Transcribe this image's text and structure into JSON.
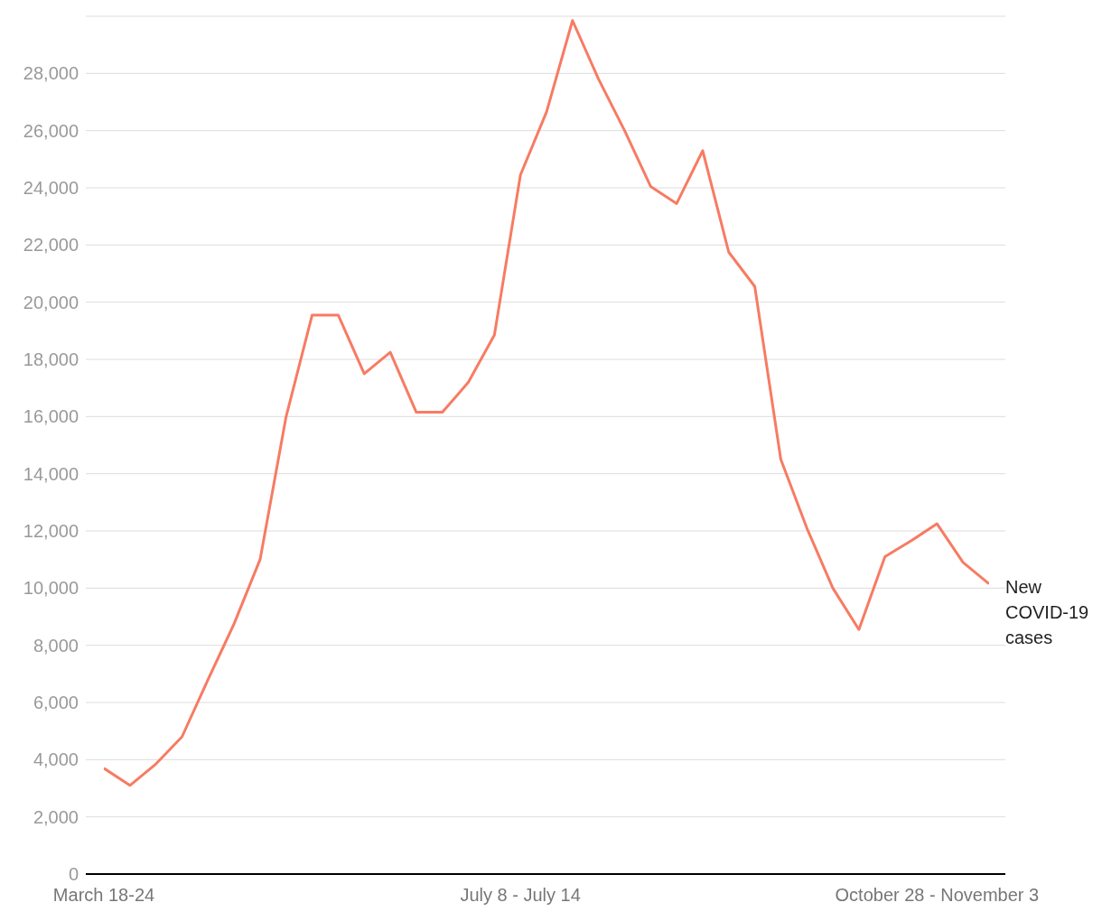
{
  "chart_data": {
    "type": "line",
    "categories": [
      "March 18-24",
      null,
      null,
      null,
      null,
      null,
      null,
      null,
      null,
      null,
      null,
      null,
      null,
      null,
      null,
      null,
      "July 8 - July 14",
      null,
      null,
      null,
      null,
      null,
      null,
      null,
      null,
      null,
      null,
      null,
      null,
      null,
      null,
      null,
      "October 28 - November 3",
      null,
      null
    ],
    "series": [
      {
        "name": "New COVID-19 cases",
        "color": "#f77b63",
        "values": [
          3700,
          3100,
          3850,
          4800,
          6800,
          8750,
          11000,
          16000,
          19550,
          19550,
          17500,
          18250,
          16150,
          16150,
          17200,
          18850,
          24450,
          26650,
          29850,
          27800,
          26000,
          24050,
          23450,
          25300,
          21750,
          20550,
          14500,
          12100,
          10000,
          8550,
          11100,
          11650,
          12250,
          10900,
          10150
        ]
      }
    ],
    "ylim": [
      0,
      30000
    ],
    "yticks": [
      {
        "value": 0,
        "label": "0"
      },
      {
        "value": 2000,
        "label": "2,000"
      },
      {
        "value": 4000,
        "label": "4,000"
      },
      {
        "value": 6000,
        "label": "6,000"
      },
      {
        "value": 8000,
        "label": "8,000"
      },
      {
        "value": 10000,
        "label": "10,000"
      },
      {
        "value": 12000,
        "label": "12,000"
      },
      {
        "value": 14000,
        "label": "14,000"
      },
      {
        "value": 16000,
        "label": "16,000"
      },
      {
        "value": 18000,
        "label": "18,000"
      },
      {
        "value": 20000,
        "label": "20,000"
      },
      {
        "value": 22000,
        "label": "22,000"
      },
      {
        "value": 24000,
        "label": "24,000"
      },
      {
        "value": 26000,
        "label": "26,000"
      },
      {
        "value": 28000,
        "label": "28,000"
      }
    ],
    "grid": "y",
    "legend": false,
    "marker": "none",
    "line_style": "solid"
  }
}
